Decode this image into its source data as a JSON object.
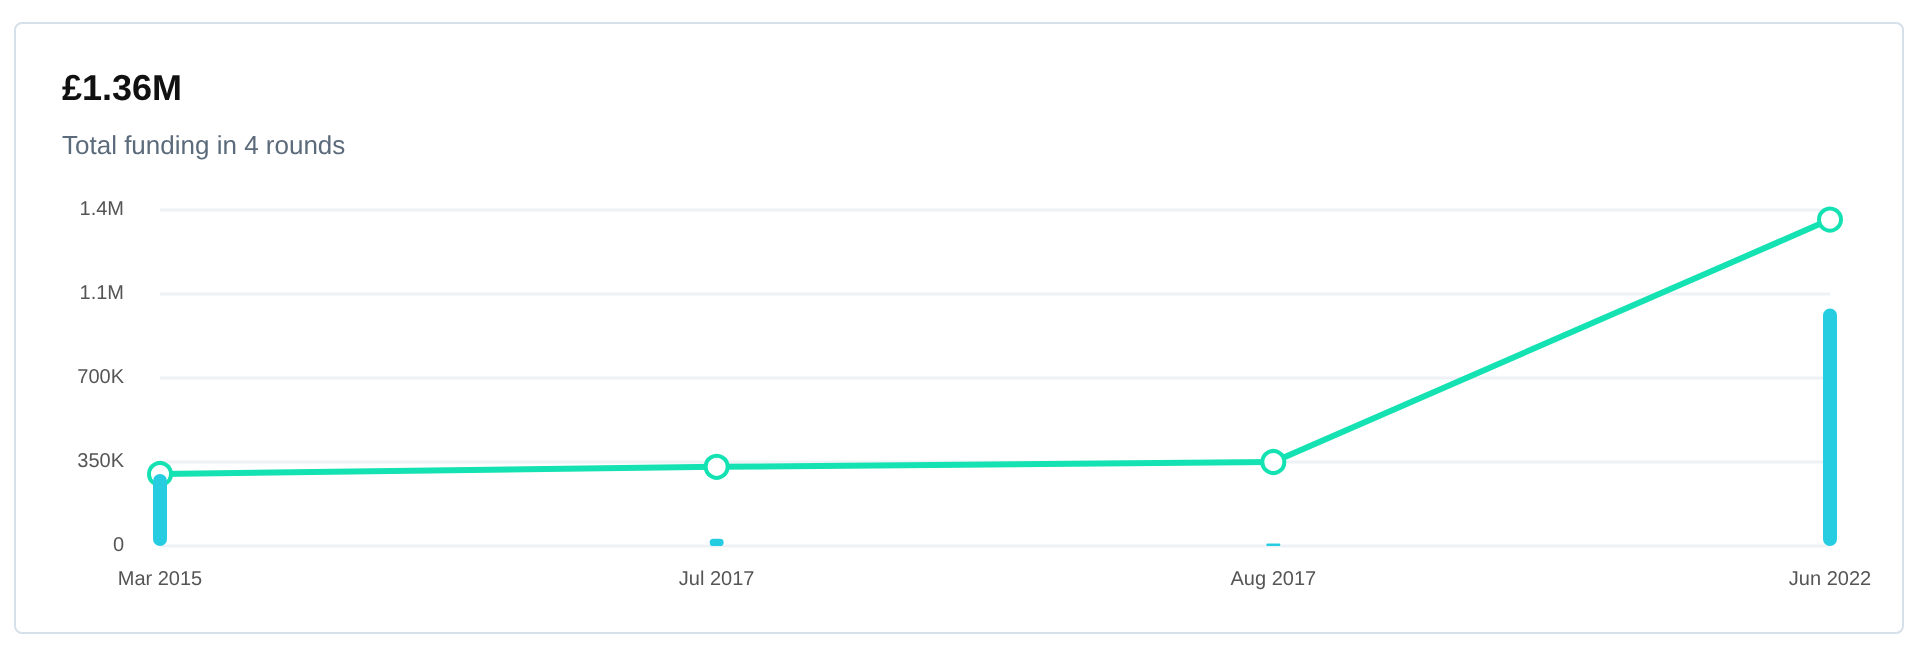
{
  "chart_data": {
    "type": "bar",
    "title": "£1.36M",
    "subtitle": "Total funding in 4 rounds",
    "categories": [
      "Mar 2015",
      "Jul 2017",
      "Aug 2017",
      "Jun 2022"
    ],
    "series": [
      {
        "type": "bar",
        "color": "#26cde1",
        "values": [
          300000,
          30000,
          10000,
          990000
        ]
      },
      {
        "type": "line",
        "color": "#14e2b2",
        "values": [
          300000,
          330000,
          350000,
          1360000
        ]
      }
    ],
    "ylim": [
      0,
      1400000
    ],
    "yticks": [
      0,
      {
        "value": 350000,
        "label": "350K"
      },
      {
        "value": 700000,
        "label": "700K"
      },
      {
        "value": 1050000,
        "label": "1.1M"
      },
      {
        "value": 1400000,
        "label": "1.4M"
      }
    ],
    "grid": "y",
    "marker": "circle",
    "line_style": "solid"
  }
}
